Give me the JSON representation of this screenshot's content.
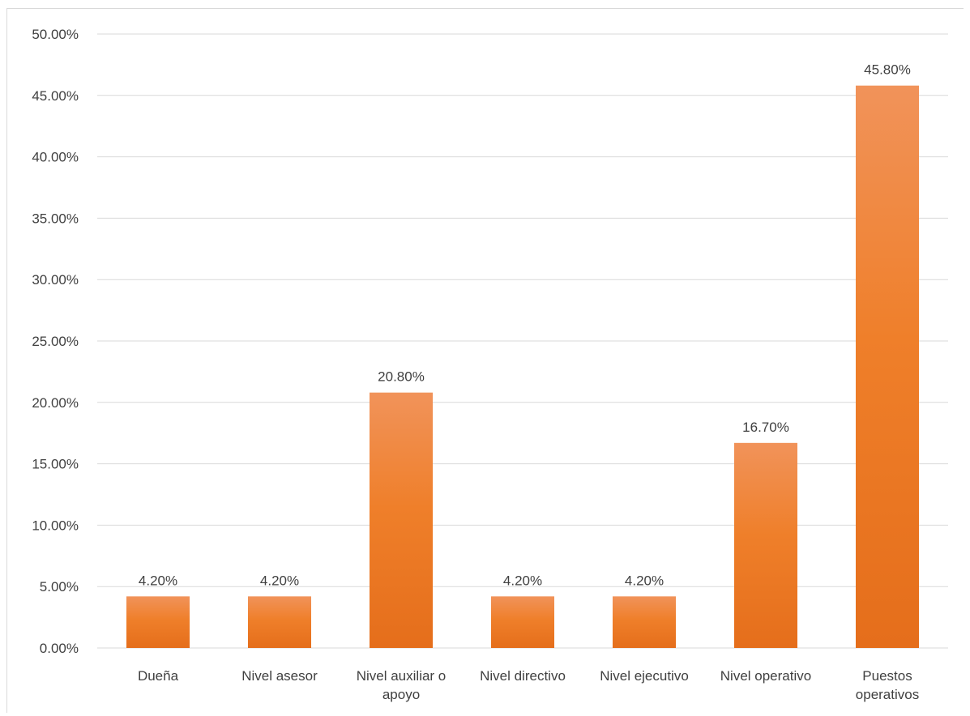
{
  "chart_data": {
    "type": "bar",
    "title": "",
    "xlabel": "",
    "ylabel": "",
    "categories": [
      [
        "Dueña"
      ],
      [
        "Nivel asesor"
      ],
      [
        "Nivel auxiliar o",
        "apoyo"
      ],
      [
        "Nivel directivo"
      ],
      [
        "Nivel ejecutivo"
      ],
      [
        "Nivel operativo"
      ],
      [
        "Puestos",
        "operativos"
      ]
    ],
    "values": [
      4.2,
      4.2,
      20.8,
      4.2,
      4.2,
      16.7,
      45.8
    ],
    "value_labels": [
      "4.20%",
      "4.20%",
      "20.80%",
      "4.20%",
      "4.20%",
      "16.70%",
      "45.80%"
    ],
    "ylim": [
      0,
      50
    ],
    "yticks": [
      0,
      5,
      10,
      15,
      20,
      25,
      30,
      35,
      40,
      45,
      50
    ],
    "ytick_labels": [
      "0.00%",
      "5.00%",
      "10.00%",
      "15.00%",
      "20.00%",
      "25.00%",
      "30.00%",
      "35.00%",
      "40.00%",
      "45.00%",
      "50.00%"
    ],
    "grid": true,
    "legend": "none",
    "colors": {
      "bar_top": "#f1935a",
      "bar_mid": "#ef7f2a",
      "bar_bottom": "#e56e1b",
      "grid": "#d9d9d9",
      "text": "#404040"
    }
  }
}
